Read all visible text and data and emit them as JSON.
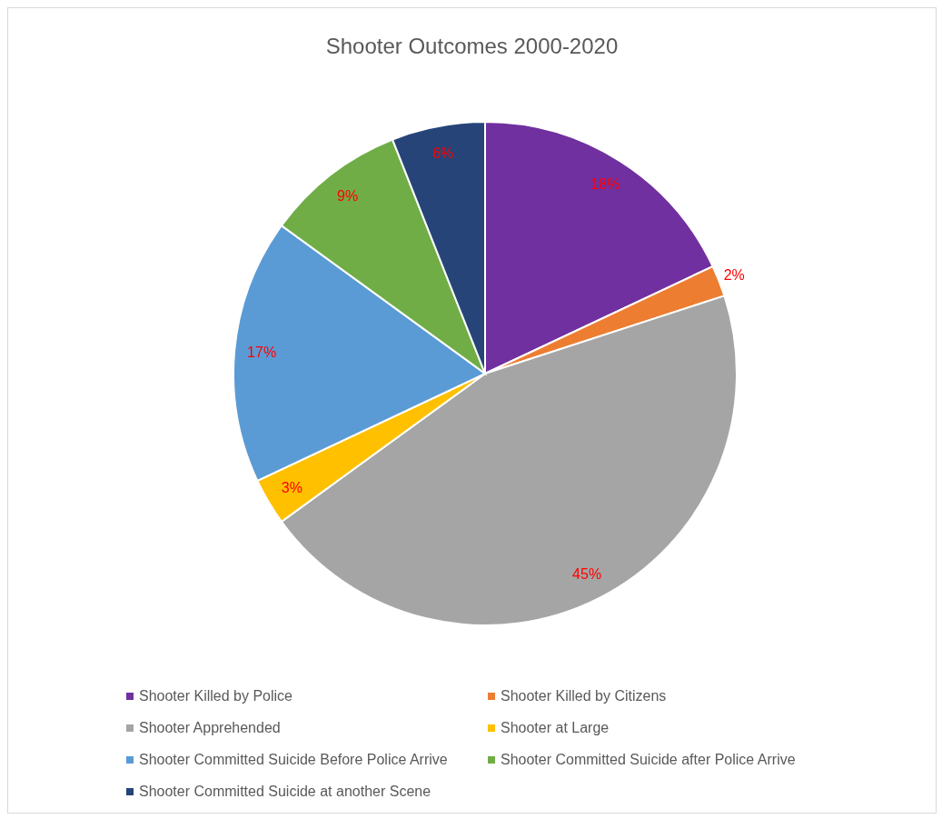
{
  "chart_data": {
    "type": "pie",
    "title": "Shooter Outcomes 2000-2020",
    "categories": [
      "Shooter Killed by Police",
      "Shooter Killed by Citizens",
      "Shooter Apprehended",
      "Shooter at Large",
      "Shooter Committed Suicide Before Police Arrive",
      "Shooter Committed Suicide after Police Arrive",
      "Shooter Committed Suicide at another Scene"
    ],
    "values": [
      18,
      2,
      45,
      3,
      17,
      9,
      6
    ],
    "value_labels": [
      "18%",
      "2%",
      "45%",
      "3%",
      "17%",
      "9%",
      "6%"
    ],
    "colors": [
      "#7030a0",
      "#ed7d31",
      "#a5a5a5",
      "#ffc000",
      "#5b9bd5",
      "#70ad47",
      "#264478"
    ],
    "legend": "bottom"
  }
}
